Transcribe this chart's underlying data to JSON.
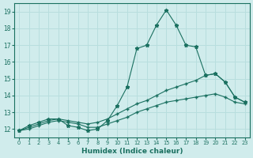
{
  "xlabel": "Humidex (Indice chaleur)",
  "x_values": [
    0,
    1,
    2,
    3,
    4,
    5,
    6,
    7,
    8,
    9,
    10,
    11,
    12,
    13,
    14,
    15,
    16,
    17,
    18,
    19,
    20,
    21,
    22,
    23
  ],
  "line_main_y": [
    11.9,
    12.2,
    12.4,
    12.6,
    12.6,
    12.2,
    12.1,
    11.9,
    12.0,
    12.5,
    13.4,
    14.5,
    16.8,
    17.0,
    18.2,
    19.1,
    18.2,
    17.0,
    16.9,
    15.2,
    15.3,
    14.8,
    13.9,
    13.6
  ],
  "line_upper_y": [
    11.9,
    12.1,
    12.3,
    12.5,
    12.6,
    12.5,
    12.4,
    12.3,
    12.4,
    12.6,
    12.9,
    13.2,
    13.5,
    13.7,
    14.0,
    14.3,
    14.5,
    14.7,
    14.9,
    15.2,
    15.3,
    14.8,
    13.9,
    13.6
  ],
  "line_lower_y": [
    11.9,
    12.0,
    12.2,
    12.4,
    12.5,
    12.4,
    12.3,
    12.1,
    12.1,
    12.3,
    12.5,
    12.7,
    13.0,
    13.2,
    13.4,
    13.6,
    13.7,
    13.8,
    13.9,
    14.0,
    14.1,
    13.9,
    13.6,
    13.5
  ],
  "color": "#1a7060",
  "bg_color": "#d0ecec",
  "grid_color": "#b8dede",
  "xlim": [
    -0.5,
    23.5
  ],
  "ylim": [
    11.5,
    19.5
  ],
  "yticks": [
    12,
    13,
    14,
    15,
    16,
    17,
    18,
    19
  ],
  "xticks": [
    0,
    1,
    2,
    3,
    4,
    5,
    6,
    7,
    8,
    9,
    10,
    11,
    12,
    13,
    14,
    15,
    16,
    17,
    18,
    19,
    20,
    21,
    22,
    23
  ]
}
